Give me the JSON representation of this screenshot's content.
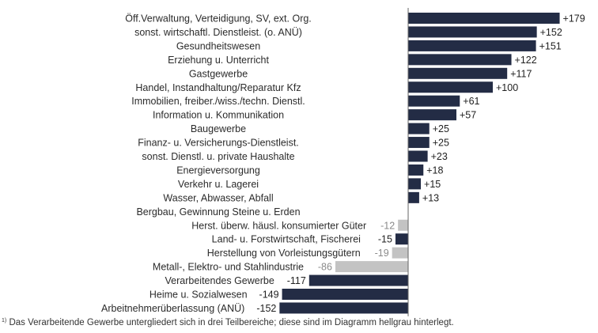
{
  "chart_data": {
    "type": "bar",
    "orientation": "horizontal",
    "categories": [
      "Öff.Verwaltung, Verteidigung, SV, ext. Org.",
      "sonst. wirtschaftl. Dienstleist. (o. ANÜ)",
      "Gesundheitswesen",
      "Erziehung u. Unterricht",
      "Gastgewerbe",
      "Handel, Instandhaltung/Reparatur Kfz",
      "Immobilien, freiber./wiss./techn. Dienstl.",
      "Information u. Kommunikation",
      "Baugewerbe",
      "Finanz- u. Versicherungs-Dienstleist.",
      "sonst. Dienstl. u. private Haushalte",
      "Energieversorgung",
      "Verkehr u. Lagerei",
      "Wasser, Abwasser, Abfall",
      "Bergbau, Gewinnung Steine u. Erden",
      "Herst. überw. häusl. konsumierter Güter",
      "Land- u. Forstwirtschaft, Fischerei",
      "Herstellung von Vorleistungsgütern",
      "Metall-, Elektro- und Stahlindustrie",
      "Verarbeitendes Gewerbe",
      "Heime u. Sozialwesen",
      "Arbeitnehmerüberlassung (ANÜ)"
    ],
    "values": [
      179,
      152,
      151,
      122,
      117,
      100,
      61,
      57,
      25,
      25,
      23,
      18,
      15,
      13,
      0,
      -12,
      -15,
      -19,
      -86,
      -117,
      -149,
      -152
    ],
    "value_labels": [
      "+179",
      "+152",
      "+151",
      "+122",
      "+117",
      "+100",
      "+61",
      "+57",
      "+25",
      "+25",
      "+23",
      "+18",
      "+15",
      "+13",
      "",
      "-12",
      "-15",
      "-19",
      "-86",
      "-117",
      "-149",
      "-152"
    ],
    "subcategory_flags": [
      false,
      false,
      false,
      false,
      false,
      false,
      false,
      false,
      false,
      false,
      false,
      false,
      false,
      false,
      false,
      true,
      false,
      true,
      true,
      false,
      false,
      false
    ],
    "xlim": [
      -160,
      190
    ],
    "grid": false,
    "legend": "none",
    "colors": {
      "main": "#232c45",
      "sub": "#c3c3c3",
      "label_main": "#222222",
      "label_sub": "#8a8a8a",
      "axis": "#666666"
    }
  },
  "footnote": {
    "marker": "1)",
    "text": "Das Verarbeitende Gewerbe untergliedert sich in drei Teilbereiche; diese sind im Diagramm hellgrau hinterlegt."
  }
}
